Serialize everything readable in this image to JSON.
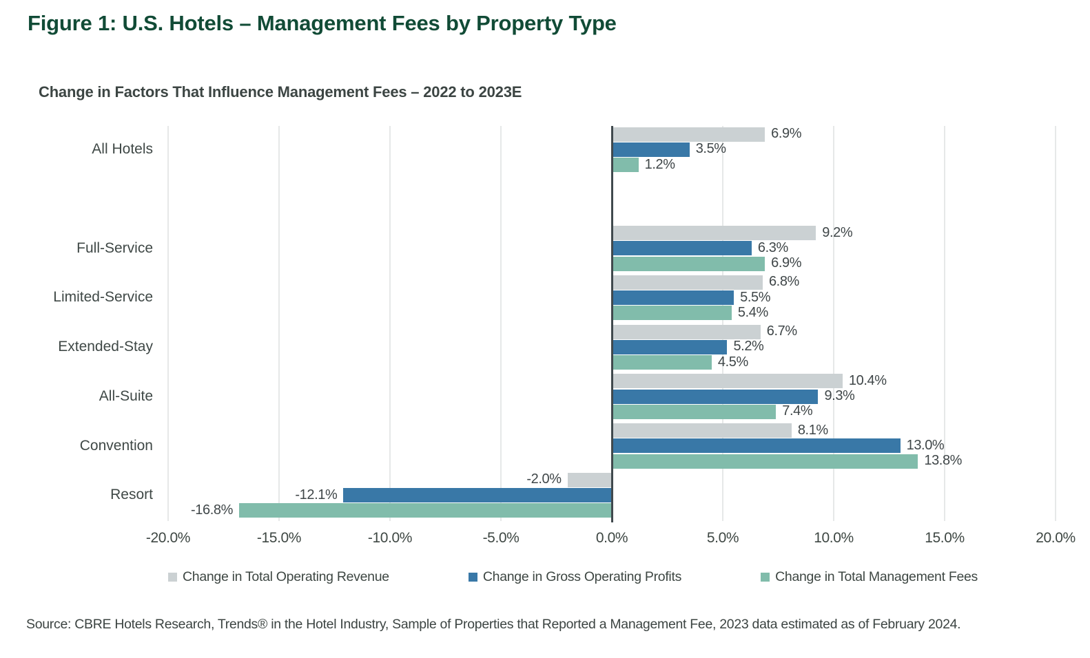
{
  "header": {
    "title": "Figure 1: U.S. Hotels – Management Fees by Property Type"
  },
  "chart": {
    "subtitle": "Change in Factors That Influence Management Fees – 2022 to 2023E"
  },
  "chart_data": {
    "type": "bar",
    "orientation": "horizontal",
    "title": "Change in Factors That Influence Management Fees – 2022 to 2023E",
    "categories": [
      "All Hotels",
      "Full-Service",
      "Limited-Service",
      "Extended-Stay",
      "All-Suite",
      "Convention",
      "Resort"
    ],
    "series": [
      {
        "name": "Change in Total Operating Revenue",
        "color": "#cbd1d3",
        "values": [
          6.9,
          9.2,
          6.8,
          6.7,
          10.4,
          8.1,
          -2.0
        ],
        "labels": [
          "6.9%",
          "9.2%",
          "6.8%",
          "6.7%",
          "10.4%",
          "8.1%",
          "-2.0%"
        ]
      },
      {
        "name": "Change in Gross Operating Profits",
        "color": "#3978a7",
        "values": [
          3.5,
          6.3,
          5.5,
          5.2,
          9.3,
          13.0,
          -12.1
        ],
        "labels": [
          "3.5%",
          "6.3%",
          "5.5%",
          "5.2%",
          "9.3%",
          "13.0%",
          "-12.1%"
        ]
      },
      {
        "name": "Change in Total Management Fees",
        "color": "#81bcab",
        "values": [
          1.2,
          6.9,
          5.4,
          4.5,
          7.4,
          13.8,
          -16.8
        ],
        "labels": [
          "1.2%",
          "6.9%",
          "5.4%",
          "4.5%",
          "7.4%",
          "13.8%",
          "-16.8%"
        ]
      }
    ],
    "xlim": [
      -20,
      20
    ],
    "x_tick_values": [
      -20,
      -15,
      -10,
      -5,
      0,
      5,
      10,
      15,
      20
    ],
    "x_tick_labels": [
      "-20.0%",
      "-15.0%",
      "-10.0%",
      "-5.0%",
      "0.0%",
      "5.0%",
      "10.0%",
      "15.0%",
      "20.0%"
    ],
    "grid": true,
    "zero_line": true,
    "legend_position": "bottom"
  },
  "source": {
    "text": "Source: CBRE Hotels Research, Trends® in the Hotel Industry, Sample of Properties that Reported a Management Fee, 2023 data estimated as of February 2024."
  },
  "colors": {
    "title_green": "#114b36",
    "body_text": "#3e4644",
    "gridline": "#e6e8e8",
    "zero_line": "#40494d"
  }
}
